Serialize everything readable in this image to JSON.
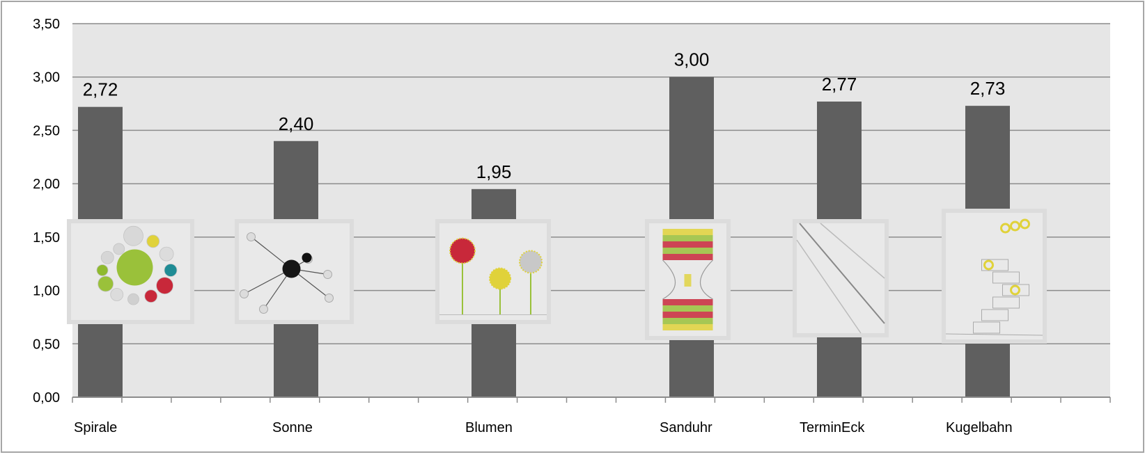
{
  "colors": {
    "plot_background": "#e6e6e6",
    "bar": "#5f5f5f",
    "gridline": "#8c8c8c",
    "frame": "#a6a6a6"
  },
  "chart_data": {
    "type": "bar",
    "categories": [
      "Spirale",
      "Sonne",
      "Blumen",
      "Sanduhr",
      "TerminEck",
      "Kugelbahn"
    ],
    "values": [
      2.72,
      2.4,
      1.95,
      3.0,
      2.77,
      2.73
    ],
    "value_labels": [
      "2,72",
      "2,40",
      "1,95",
      "3,00",
      "2,77",
      "2,73"
    ],
    "ylim": [
      0,
      3.5
    ],
    "yticks": [
      0,
      0.5,
      1,
      1.5,
      2,
      2.5,
      3,
      3.5
    ],
    "ytick_labels": [
      "0,00",
      "0,50",
      "1,00",
      "1,50",
      "2,00",
      "2,50",
      "3,00",
      "3,50"
    ],
    "title": "",
    "xlabel": "",
    "ylabel": "",
    "grid": true,
    "legend": "none"
  },
  "thumbnails": [
    {
      "category": "Spirale",
      "icon": "spiral-drawing-icon"
    },
    {
      "category": "Sonne",
      "icon": "sun-drawing-icon"
    },
    {
      "category": "Blumen",
      "icon": "flowers-drawing-icon"
    },
    {
      "category": "Sanduhr",
      "icon": "hourglass-drawing-icon"
    },
    {
      "category": "TerminEck",
      "icon": "diagonal-corner-drawing-icon"
    },
    {
      "category": "Kugelbahn",
      "icon": "marble-run-drawing-icon"
    }
  ]
}
